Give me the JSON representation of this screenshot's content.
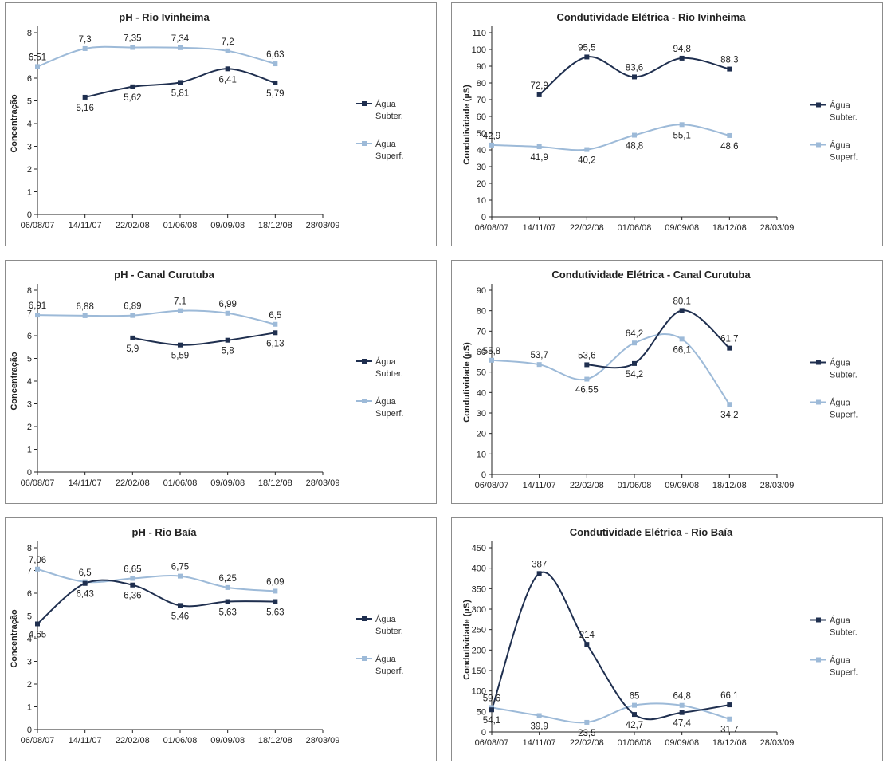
{
  "colors": {
    "subter": "#1f2f4f",
    "superf": "#9dbad8",
    "axis": "#222222"
  },
  "chart_data": [
    {
      "type": "line",
      "title": "pH - Rio Ivinheima",
      "ylabel": "Concentração",
      "ylim": [
        0,
        8
      ],
      "ystep": 1,
      "x_ticks": [
        "06/08/07",
        "14/11/07",
        "22/02/08",
        "01/06/08",
        "09/09/08",
        "18/12/08",
        "28/03/09"
      ],
      "series": [
        {
          "name": "Água Subter.",
          "legend": [
            "Água",
            "Subter."
          ],
          "x": [
            "14/11/07",
            "22/02/08",
            "01/06/08",
            "09/09/08",
            "18/12/08"
          ],
          "values": [
            5.16,
            5.62,
            5.81,
            6.41,
            5.79
          ],
          "labels": [
            "5,16",
            "5,62",
            "5,81",
            "6,41",
            "5,79"
          ]
        },
        {
          "name": "Água Superf.",
          "legend": [
            "Água",
            "Superf."
          ],
          "x": [
            "06/08/07",
            "14/11/07",
            "22/02/08",
            "01/06/08",
            "09/09/08",
            "18/12/08"
          ],
          "values": [
            6.51,
            7.3,
            7.35,
            7.34,
            7.2,
            6.63
          ],
          "labels": [
            "6,51",
            "7,3",
            "7,35",
            "7,34",
            "7,2",
            "6,63"
          ]
        }
      ]
    },
    {
      "type": "line",
      "title": "Condutividade Elétrica - Rio Ivinheima",
      "ylabel": "Condutividade (µS)",
      "ylim": [
        0,
        110
      ],
      "ystep": 10,
      "x_ticks": [
        "06/08/07",
        "14/11/07",
        "22/02/08",
        "01/06/08",
        "09/09/08",
        "18/12/08",
        "28/03/09"
      ],
      "series": [
        {
          "name": "Água Subter.",
          "legend": [
            "Água",
            "Subter."
          ],
          "x": [
            "14/11/07",
            "22/02/08",
            "01/06/08",
            "09/09/08",
            "18/12/08"
          ],
          "values": [
            72.9,
            95.5,
            83.6,
            94.8,
            88.3
          ],
          "labels": [
            "72,9",
            "95,5",
            "83,6",
            "94,8",
            "88,3"
          ]
        },
        {
          "name": "Água Superf.",
          "legend": [
            "Água",
            "Superf."
          ],
          "x": [
            "06/08/07",
            "14/11/07",
            "22/02/08",
            "01/06/08",
            "09/09/08",
            "18/12/08"
          ],
          "values": [
            42.9,
            41.9,
            40.2,
            48.8,
            55.1,
            48.6
          ],
          "labels": [
            "42,9",
            "41,9",
            "40,2",
            "48,8",
            "55,1",
            "48,6"
          ]
        }
      ]
    },
    {
      "type": "line",
      "title": "pH - Canal Curutuba",
      "ylabel": "Concentração",
      "ylim": [
        0,
        8
      ],
      "ystep": 1,
      "x_ticks": [
        "06/08/07",
        "14/11/07",
        "22/02/08",
        "01/06/08",
        "09/09/08",
        "18/12/08",
        "28/03/09"
      ],
      "series": [
        {
          "name": "Água Subter.",
          "legend": [
            "Água",
            "Subter."
          ],
          "x": [
            "22/02/08",
            "01/06/08",
            "09/09/08",
            "18/12/08"
          ],
          "values": [
            5.9,
            5.59,
            5.8,
            6.13
          ],
          "labels": [
            "5,9",
            "5,59",
            "5,8",
            "6,13"
          ]
        },
        {
          "name": "Água Superf.",
          "legend": [
            "Água",
            "Superf."
          ],
          "x": [
            "06/08/07",
            "14/11/07",
            "22/02/08",
            "01/06/08",
            "09/09/08",
            "18/12/08"
          ],
          "values": [
            6.91,
            6.88,
            6.89,
            7.1,
            6.99,
            6.5
          ],
          "labels": [
            "6,91",
            "6,88",
            "6,89",
            "7,1",
            "6,99",
            "6,5"
          ]
        }
      ]
    },
    {
      "type": "line",
      "title": "Condutividade Elétrica - Canal Curutuba",
      "ylabel": "Condutividade (µS)",
      "ylim": [
        0,
        90
      ],
      "ystep": 10,
      "x_ticks": [
        "06/08/07",
        "14/11/07",
        "22/02/08",
        "01/06/08",
        "09/09/08",
        "18/12/08",
        "28/03/09"
      ],
      "series": [
        {
          "name": "Água Subter.",
          "legend": [
            "Água",
            "Subter."
          ],
          "x": [
            "22/02/08",
            "01/06/08",
            "09/09/08",
            "18/12/08"
          ],
          "values": [
            53.6,
            54.2,
            80.1,
            61.7
          ],
          "labels": [
            "53,6",
            "54,2",
            "80,1",
            "61,7"
          ]
        },
        {
          "name": "Água Superf.",
          "legend": [
            "Água",
            "Superf."
          ],
          "x": [
            "06/08/07",
            "14/11/07",
            "22/02/08",
            "01/06/08",
            "09/09/08",
            "18/12/08"
          ],
          "values": [
            55.8,
            53.7,
            46.55,
            64.2,
            66.1,
            34.2
          ],
          "labels": [
            "55,8",
            "53,7",
            "46,55",
            "64,2",
            "66,1",
            "34,2"
          ]
        }
      ]
    },
    {
      "type": "line",
      "title": "pH - Rio Baía",
      "ylabel": "Concentração",
      "ylim": [
        0,
        8
      ],
      "ystep": 1,
      "x_ticks": [
        "06/08/07",
        "14/11/07",
        "22/02/08",
        "01/06/08",
        "09/09/08",
        "18/12/08",
        "28/03/09"
      ],
      "series": [
        {
          "name": "Água Subter.",
          "legend": [
            "Água",
            "Subter."
          ],
          "x": [
            "06/08/07",
            "14/11/07",
            "22/02/08",
            "01/06/08",
            "09/09/08",
            "18/12/08"
          ],
          "values": [
            4.65,
            6.43,
            6.36,
            5.46,
            5.63,
            5.63
          ],
          "labels": [
            "4,65",
            "6,43",
            "6,36",
            "5,46",
            "5,63",
            "5,63"
          ]
        },
        {
          "name": "Água Superf.",
          "legend": [
            "Água",
            "Superf."
          ],
          "x": [
            "06/08/07",
            "14/11/07",
            "22/02/08",
            "01/06/08",
            "09/09/08",
            "18/12/08"
          ],
          "values": [
            7.06,
            6.5,
            6.65,
            6.75,
            6.25,
            6.09
          ],
          "labels": [
            "7,06",
            "6,5",
            "6,65",
            "6,75",
            "6,25",
            "6,09"
          ]
        }
      ]
    },
    {
      "type": "line",
      "title": "Condutividade Elétrica - Rio Baía",
      "ylabel": "Condutividade (µS)",
      "ylim": [
        0,
        450
      ],
      "ystep": 50,
      "x_ticks": [
        "06/08/07",
        "14/11/07",
        "22/02/08",
        "01/06/08",
        "09/09/08",
        "18/12/08",
        "28/03/09"
      ],
      "series": [
        {
          "name": "Água Subter.",
          "legend": [
            "Água",
            "Subter."
          ],
          "x": [
            "06/08/07",
            "14/11/07",
            "22/02/08",
            "01/06/08",
            "09/09/08",
            "18/12/08"
          ],
          "values": [
            54.1,
            387,
            214,
            42.7,
            47.4,
            66.1
          ],
          "labels": [
            "54,1",
            "387",
            "214",
            "42,7",
            "47,4",
            "66,1"
          ]
        },
        {
          "name": "Água Superf.",
          "legend": [
            "Água",
            "Superf."
          ],
          "x": [
            "06/08/07",
            "14/11/07",
            "22/02/08",
            "01/06/08",
            "09/09/08",
            "18/12/08"
          ],
          "values": [
            59.6,
            39.9,
            23.5,
            65,
            64.8,
            31.7
          ],
          "labels": [
            "59,6",
            "39,9",
            "23,5",
            "65",
            "64,8",
            "31,7"
          ]
        }
      ]
    }
  ]
}
